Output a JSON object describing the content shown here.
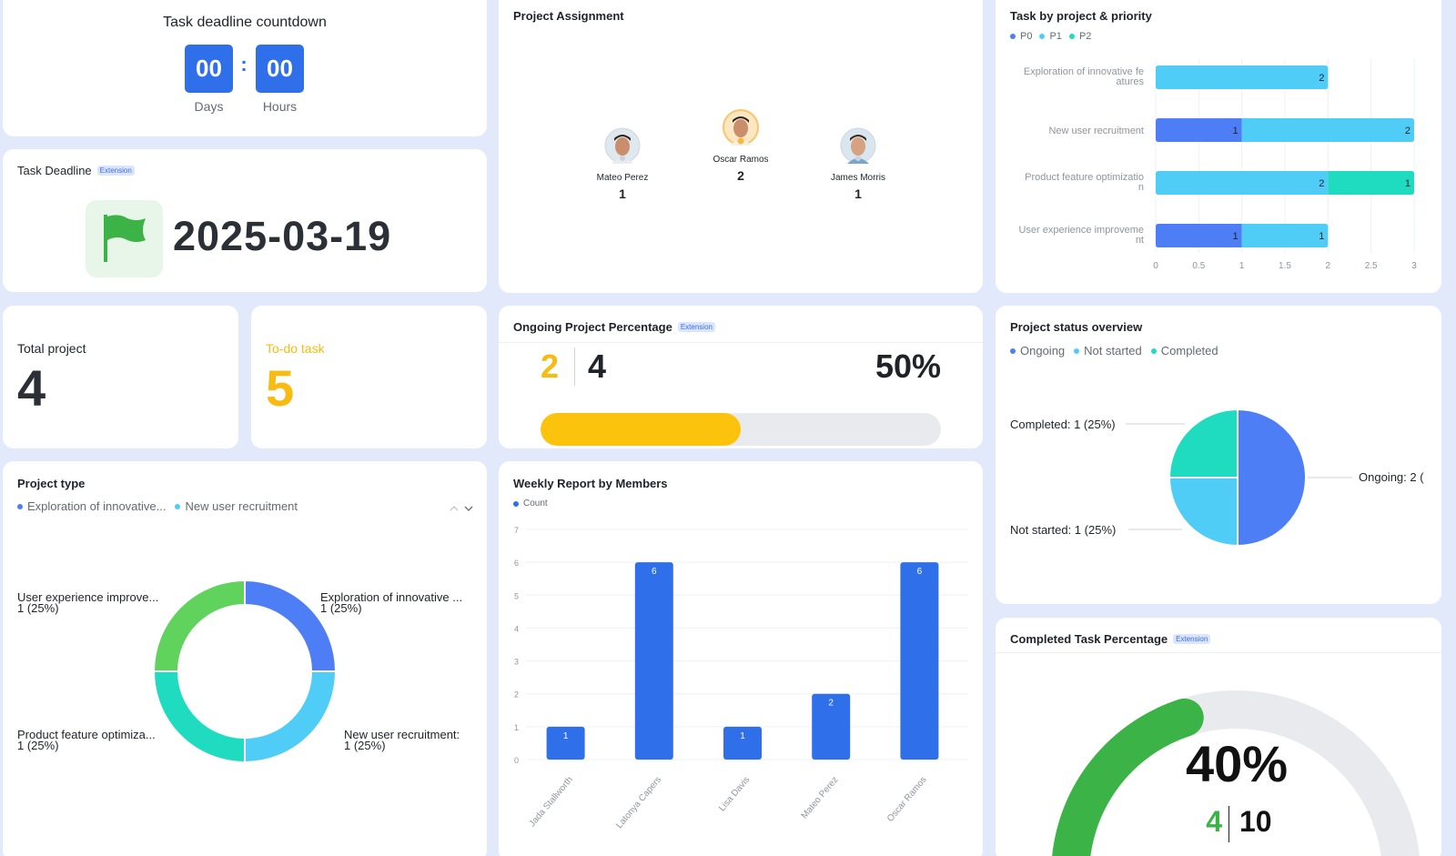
{
  "countdown": {
    "title": "Task deadline countdown",
    "days_value": "00",
    "hours_value": "00",
    "separator": ":",
    "days_label": "Days",
    "hours_label": "Hours"
  },
  "deadline": {
    "title": "Task Deadline",
    "badge": "Extension",
    "date": "2025-03-19",
    "icon": "flag-icon",
    "icon_color": "#3bb346"
  },
  "assignment": {
    "title": "Project Assignment",
    "people": [
      {
        "name": "Mateo Perez",
        "count": "1"
      },
      {
        "name": "Oscar Ramos",
        "count": "2"
      },
      {
        "name": "James Morris",
        "count": "1"
      }
    ]
  },
  "priority_chart": {
    "title": "Task by project & priority",
    "colors": {
      "P0": "#4e7ef5",
      "P1": "#4fcdf7",
      "P2": "#1fdcc1"
    },
    "chart_data": {
      "type": "bar",
      "orientation": "horizontal",
      "stacked": true,
      "categories": [
        "Exploration of innovative features",
        "New user recruitment",
        "Product feature optimization",
        "User experience improvement"
      ],
      "category_labels": [
        [
          "Exploration of innovative fe",
          "atures"
        ],
        [
          "New user recruitment"
        ],
        [
          "Product feature optimizatio",
          "n"
        ],
        [
          "User experience improveme",
          "nt"
        ]
      ],
      "series": [
        {
          "name": "P0",
          "values": [
            0,
            1,
            0,
            1
          ]
        },
        {
          "name": "P1",
          "values": [
            2,
            2,
            2,
            1
          ]
        },
        {
          "name": "P2",
          "values": [
            0,
            0,
            1,
            0
          ]
        }
      ],
      "xlim": [
        0,
        3
      ],
      "xticks": [
        "0",
        "0.5",
        "1",
        "1.5",
        "2",
        "2.5",
        "3"
      ],
      "legend": "top-left",
      "grid": true
    }
  },
  "total_project": {
    "label": "Total project",
    "value": "4"
  },
  "todo_task": {
    "label": "To-do task",
    "value": "5"
  },
  "ongoing": {
    "title": "Ongoing Project Percentage",
    "badge": "Extension",
    "current": "2",
    "total": "4",
    "percent_text": "50%",
    "fraction": 0.5
  },
  "status_chart": {
    "title": "Project status overview",
    "colors": {
      "Ongoing": "#4e7ef5",
      "Not started": "#4fcdf7",
      "Completed": "#1fdcc1"
    },
    "chart_data": {
      "type": "pie",
      "slices": [
        {
          "name": "Ongoing",
          "value": 2,
          "label": "Ongoing: 2 ("
        },
        {
          "name": "Not started",
          "value": 1,
          "label": "Not started: 1 (25%)"
        },
        {
          "name": "Completed",
          "value": 1,
          "label": "Completed: 1 (25%)"
        }
      ],
      "legend": "top-left"
    }
  },
  "project_type": {
    "title": "Project type",
    "legend_items": [
      "Exploration of innovative...",
      "New user recruitment"
    ],
    "colors": [
      "#4e7ef5",
      "#4fcdf7",
      "#1fdcc1",
      "#5fd35b"
    ],
    "chart_data": {
      "type": "pie",
      "donut": true,
      "slices": [
        {
          "name": "Exploration of innovative ...",
          "value": 1,
          "label_line2": "1 (25%)"
        },
        {
          "name": "New user recruitment:",
          "value": 1,
          "label_line2": "1 (25%)"
        },
        {
          "name": "Product feature optimiza...",
          "value": 1,
          "label_line2": "1 (25%)"
        },
        {
          "name": "User experience improve...",
          "value": 1,
          "label_line2": "1 (25%)"
        }
      ]
    }
  },
  "weekly": {
    "title": "Weekly Report by Members",
    "color": "#2f6fea",
    "chart_data": {
      "type": "bar",
      "categories": [
        "Jada Stallworth",
        "Latonya Capers",
        "Lisa Davis",
        "Mateo Perez",
        "Oscar Ramos"
      ],
      "series": [
        {
          "name": "Count",
          "values": [
            1,
            6,
            1,
            2,
            6
          ]
        }
      ],
      "ylim": [
        0,
        7
      ],
      "yticks": [
        "0",
        "1",
        "2",
        "3",
        "4",
        "5",
        "6",
        "7"
      ],
      "legend": "top-left",
      "grid": true
    }
  },
  "completed": {
    "title": "Completed Task Percentage",
    "badge": "Extension",
    "percent_text": "40%",
    "done": "4",
    "total": "10",
    "fraction": 0.4,
    "color": "#3bb346"
  }
}
